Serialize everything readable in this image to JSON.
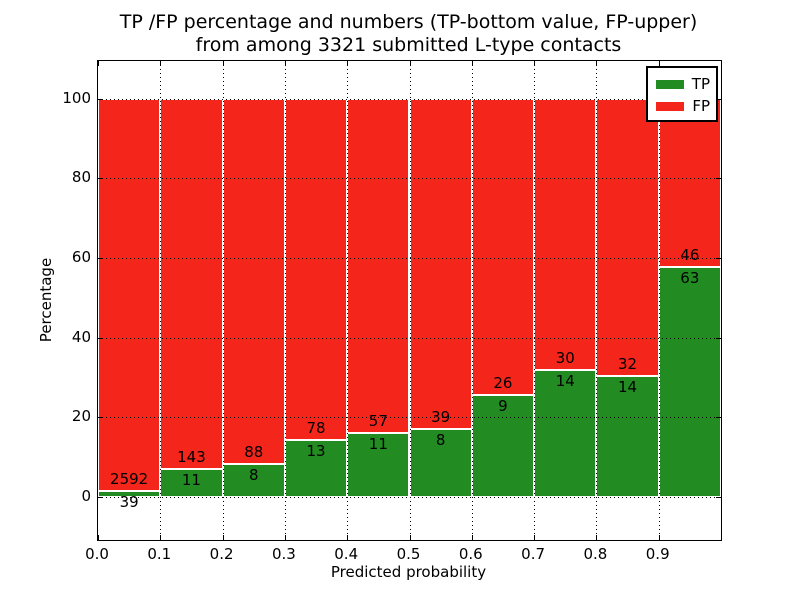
{
  "chart_data": {
    "type": "bar",
    "stacked": true,
    "normalized_to_percent": 100,
    "title_line1": "TP /FP percentage and numbers (TP-bottom value, FP-upper)",
    "title_line2": "from among 3321 submitted L-type contacts",
    "xlabel": "Predicted probability",
    "ylabel": "Percentage",
    "total_contacts": 3321,
    "x_tick_labels": [
      "0.0",
      "0.1",
      "0.2",
      "0.3",
      "0.4",
      "0.5",
      "0.6",
      "0.7",
      "0.8",
      "0.9"
    ],
    "y_ticks": [
      0,
      20,
      40,
      60,
      80,
      100
    ],
    "xlim": [
      0.0,
      1.0
    ],
    "ylim": [
      -10.8,
      109.5
    ],
    "bar_width": 0.1,
    "grid": "dotted black, drawn over bars",
    "legend_position": "upper right",
    "series": [
      {
        "name": "TP",
        "color": "#228b22",
        "counts": [
          39,
          11,
          8,
          13,
          11,
          8,
          9,
          14,
          14,
          63
        ]
      },
      {
        "name": "FP",
        "color": "#f4261c",
        "counts": [
          2592,
          143,
          88,
          78,
          57,
          39,
          26,
          30,
          32,
          46
        ]
      }
    ],
    "tp_percent_of_bin": [
      1.48,
      7.14,
      8.33,
      14.29,
      16.18,
      17.02,
      25.71,
      31.82,
      30.43,
      57.8
    ],
    "colors": {
      "tp_green": "#228b22",
      "fp_red": "#f4261c",
      "bar_edge": "#ffffff",
      "grid": "#000000",
      "frame": "#000000",
      "background": "#ffffff"
    }
  }
}
